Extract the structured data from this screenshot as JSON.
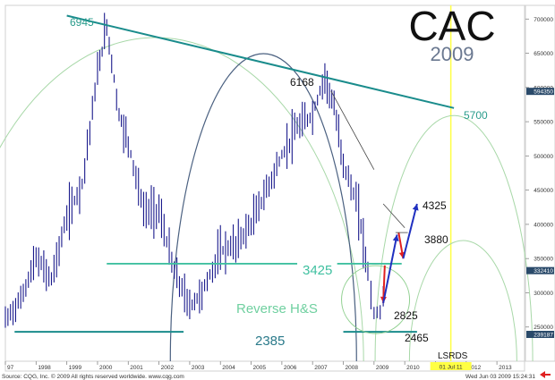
{
  "chart_data": {
    "type": "bar",
    "title": "CAC",
    "subtitle": "2009",
    "x_axis": {
      "ticks": [
        "97",
        "1998",
        "1999",
        "2000",
        "2001",
        "2002",
        "2003",
        "2004",
        "2005",
        "2006",
        "2007",
        "2008",
        "2009",
        "2010",
        "2011",
        "2012",
        "2013"
      ],
      "marker_label": "01 Jul 11"
    },
    "y_axis": {
      "side": "right",
      "range": [
        200000,
        720000
      ],
      "ticks": [
        "700000",
        "650000",
        "600000",
        "550000",
        "500000",
        "450000",
        "400000",
        "350000",
        "300000",
        "250000"
      ],
      "highlight_ticks": [
        {
          "label": "594350",
          "value": 594350
        },
        {
          "label": "332410",
          "value": 332410
        },
        {
          "label": "239187",
          "value": 239187
        }
      ]
    },
    "series": [
      {
        "x": [
          1997.0,
          1997.5,
          1998.0,
          1998.5,
          1999.0,
          1999.5,
          2000.0,
          2000.3,
          2000.7,
          2001.0,
          2001.5,
          2002.0,
          2002.5,
          2003.0,
          2003.4,
          2004.0,
          2004.5,
          2005.0,
          2005.5,
          2006.0,
          2006.5,
          2007.0,
          2007.4,
          2007.7,
          2008.0,
          2008.5,
          2008.8,
          2009.0,
          2009.2,
          2009.4
        ],
        "values": [
          260000,
          290000,
          350000,
          320000,
          410000,
          460000,
          620000,
          690000,
          560000,
          520000,
          420000,
          420000,
          330000,
          280000,
          300000,
          360000,
          370000,
          400000,
          450000,
          500000,
          540000,
          560000,
          616800,
          570000,
          490000,
          420000,
          330000,
          270000,
          270000,
          330000
        ]
      }
    ],
    "annotations": [
      {
        "label": "6945",
        "x": 2000.3,
        "value": 694500
      },
      {
        "label": "6168",
        "x": 2007.4,
        "value": 616800
      },
      {
        "label": "5700",
        "x": 2011.5,
        "value": 570000
      },
      {
        "label": "4325",
        "x": 2010.0,
        "value": 432500
      },
      {
        "label": "3880",
        "x": 2010.0,
        "value": 388000
      },
      {
        "label": "3425",
        "x": 2006.0,
        "value": 342500
      },
      {
        "label": "2825",
        "x": 2009.3,
        "value": 282500
      },
      {
        "label": "2465",
        "x": 2009.9,
        "value": 246500
      },
      {
        "label": "2385",
        "x": 2005.5,
        "value": 238500
      },
      {
        "label": "Reverse H&S",
        "x": 2006.2,
        "value": 300000
      },
      {
        "label": "LSRDS",
        "x": 2011.3,
        "value": 220000
      }
    ],
    "footer": {
      "source": "Source: CQG, Inc. © 2009 All rights reserved worldwide. www.cqg.com",
      "timestamp": "Wed Jun 03 2009 15:24:31"
    },
    "colors": {
      "bars": "#1a1a8c",
      "trendline": "#1a8c8c",
      "support": "#40c0a0",
      "arc_light": "#a8d8a8",
      "arc_dark": "#4a6080",
      "projection_up": "#2030c0",
      "projection_down": "#e02020",
      "time_marker": "#ffff44"
    }
  }
}
